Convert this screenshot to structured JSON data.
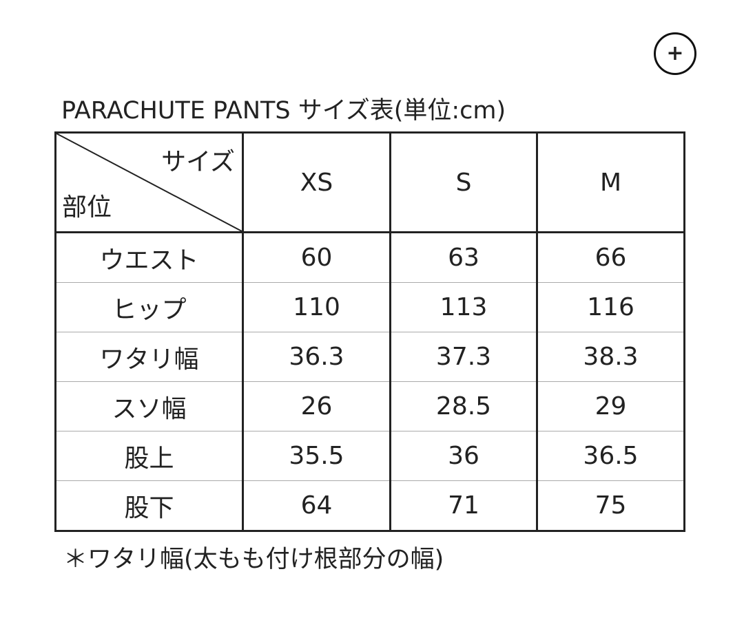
{
  "zoom_button": {
    "icon": "plus-circle-icon",
    "label": "+"
  },
  "title": "PARACHUTE PANTS サイズ表(単位:cm)",
  "table": {
    "corner_top": "サイズ",
    "corner_bottom": "部位",
    "sizes": [
      "XS",
      "S",
      "M"
    ],
    "rows": [
      {
        "label": "ウエスト",
        "values": [
          "60",
          "63",
          "66"
        ]
      },
      {
        "label": "ヒップ",
        "values": [
          "110",
          "113",
          "116"
        ]
      },
      {
        "label": "ワタリ幅",
        "values": [
          "36.3",
          "37.3",
          "38.3"
        ]
      },
      {
        "label": "スソ幅",
        "values": [
          "26",
          "28.5",
          "29"
        ]
      },
      {
        "label": "股上",
        "values": [
          "35.5",
          "36",
          "36.5"
        ]
      },
      {
        "label": "股下",
        "values": [
          "64",
          "71",
          "75"
        ]
      }
    ]
  },
  "note": "＊ワタリ幅(太もも付け根部分の幅)"
}
